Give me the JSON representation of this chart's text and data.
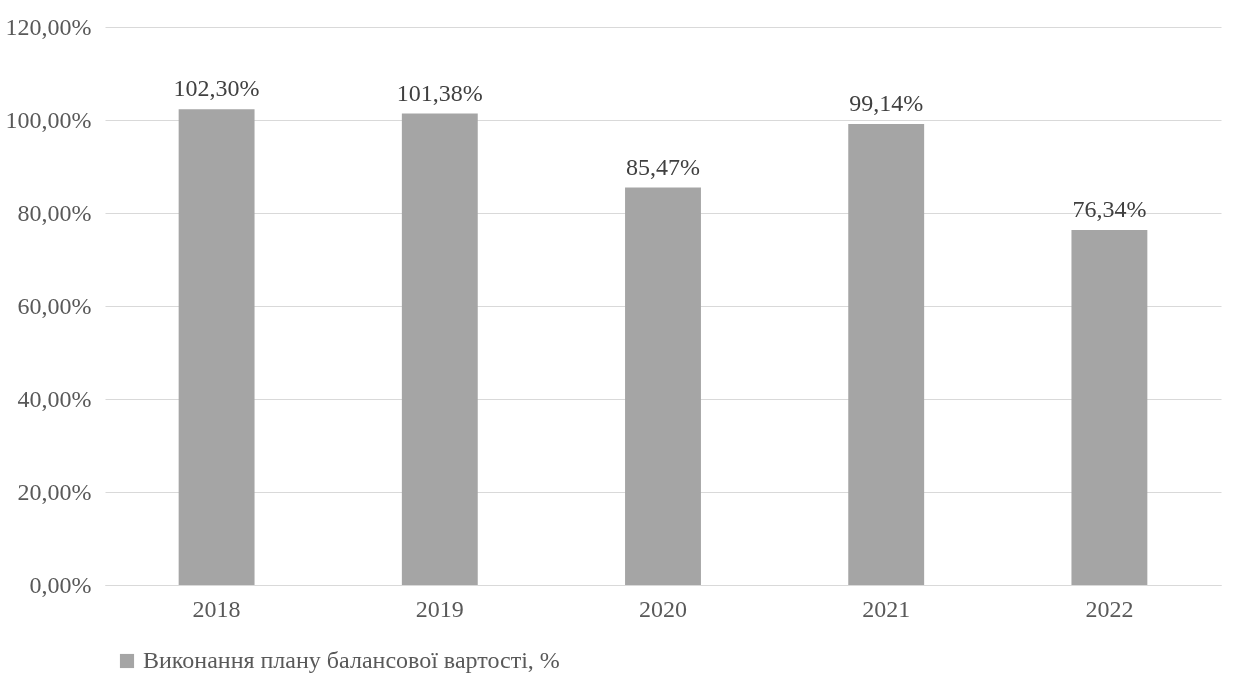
{
  "chart_data": {
    "type": "bar",
    "categories": [
      "2018",
      "2019",
      "2020",
      "2021",
      "2022"
    ],
    "series": [
      {
        "name": "Виконання плану балансової вартості, %",
        "color": "#a5a5a5",
        "values": [
          102.3,
          101.38,
          85.47,
          99.14,
          76.34
        ],
        "value_labels": [
          "102,30%",
          "101,38%",
          "85,47%",
          "99,14%",
          "76,34%"
        ]
      }
    ],
    "ylim": [
      0,
      120
    ],
    "yticks": [
      {
        "value": 0,
        "label": "0,00%"
      },
      {
        "value": 20,
        "label": "20,00%"
      },
      {
        "value": 40,
        "label": "40,00%"
      },
      {
        "value": 60,
        "label": "60,00%"
      },
      {
        "value": 80,
        "label": "80,00%"
      },
      {
        "value": 100,
        "label": "100,00%"
      },
      {
        "value": 120,
        "label": "120,00%"
      }
    ],
    "grid": "y",
    "legend": "bottom"
  }
}
